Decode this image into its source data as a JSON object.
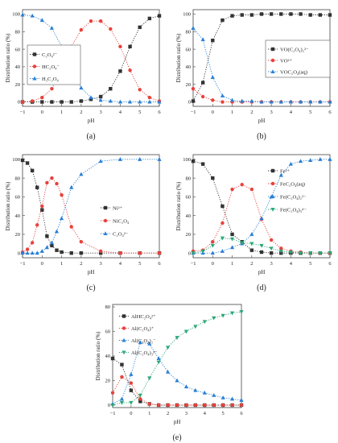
{
  "chart_data": [
    {
      "panel_label": "(a)",
      "type": "line",
      "xlabel": "pH",
      "ylabel": "Distribution ratio (%)",
      "xlim": [
        -1,
        6
      ],
      "ylim": [
        -5,
        105
      ],
      "xticks": [
        -1,
        0,
        1,
        2,
        3,
        4,
        5,
        6
      ],
      "yticks": [
        0,
        20,
        40,
        60,
        80,
        100
      ],
      "legend_position": "top-left",
      "series": [
        {
          "name": "C₂O₄²⁻",
          "color": "#333333",
          "marker": "square",
          "x": [
            -1,
            -0.5,
            0,
            0.5,
            1,
            1.5,
            2,
            2.5,
            3,
            3.5,
            4,
            4.5,
            5,
            5.5,
            6
          ],
          "y": [
            0,
            0,
            0,
            0,
            0,
            0,
            1,
            3,
            6,
            15,
            35,
            63,
            85,
            95,
            98
          ]
        },
        {
          "name": "HC₂O₄⁻",
          "color": "#e8413b",
          "marker": "circle",
          "x": [
            -1,
            -0.5,
            0,
            0.5,
            1,
            1.5,
            2,
            2.5,
            3,
            3.5,
            4,
            4.5,
            5,
            5.5,
            6
          ],
          "y": [
            0,
            1,
            5,
            15,
            35,
            63,
            82,
            92,
            92,
            83,
            63,
            36,
            14,
            5,
            1
          ]
        },
        {
          "name": "H₂C₂O₄",
          "color": "#2a7fd4",
          "marker": "triangle-up",
          "x": [
            -1,
            -0.5,
            0,
            0.5,
            1,
            1.5,
            2,
            2.5,
            3,
            3.5,
            4,
            4.5,
            5,
            5.5,
            6
          ],
          "y": [
            99,
            98,
            93,
            84,
            63,
            36,
            16,
            5,
            2,
            1,
            0,
            0,
            0,
            0,
            0
          ]
        }
      ]
    },
    {
      "panel_label": "(b)",
      "type": "line",
      "xlabel": "pH",
      "ylabel": "Distribution ratio (%)",
      "xlim": [
        -1,
        6
      ],
      "ylim": [
        -5,
        105
      ],
      "xticks": [
        -1,
        0,
        1,
        2,
        3,
        4,
        5,
        6
      ],
      "yticks": [
        0,
        20,
        40,
        60,
        80,
        100
      ],
      "legend_position": "center-right",
      "series": [
        {
          "name": "VO(C₂O₄)₂²⁻",
          "color": "#333333",
          "marker": "square",
          "x": [
            -1,
            -0.5,
            0,
            0.5,
            1,
            1.5,
            2,
            2.5,
            3,
            3.5,
            4,
            4.5,
            5,
            5.5,
            6
          ],
          "y": [
            1,
            22,
            70,
            93,
            98,
            99,
            99,
            100,
            100,
            100,
            100,
            100,
            99,
            99,
            99
          ]
        },
        {
          "name": "VO²⁺",
          "color": "#e8413b",
          "marker": "circle",
          "x": [
            -1,
            -0.5,
            0,
            0.5,
            1,
            1.5,
            2,
            2.5,
            3,
            3.5,
            4,
            4.5,
            5,
            5.5,
            6
          ],
          "y": [
            15,
            6,
            2,
            0,
            0,
            0,
            0,
            0,
            0,
            0,
            0,
            0,
            0,
            0,
            0
          ]
        },
        {
          "name": "VOC₂O₄(aq)",
          "color": "#2a7fd4",
          "marker": "triangle-up",
          "x": [
            -1,
            -0.5,
            0,
            0.5,
            1,
            1.5,
            2,
            2.5,
            3,
            3.5,
            4,
            4.5,
            5,
            5.5,
            6
          ],
          "y": [
            84,
            71,
            28,
            7,
            2,
            1,
            1,
            0,
            0,
            0,
            0,
            0,
            0,
            0,
            0
          ]
        }
      ]
    },
    {
      "panel_label": "(c)",
      "type": "line",
      "xlabel": "pH",
      "ylabel": "Distribution ratio (%)",
      "xlim": [
        -1,
        6
      ],
      "ylim": [
        -5,
        105
      ],
      "xticks": [
        -1,
        0,
        1,
        2,
        3,
        4,
        5,
        6
      ],
      "yticks": [
        0,
        20,
        40,
        60,
        80,
        100
      ],
      "legend_position": "center-right",
      "series": [
        {
          "name": "Ni²⁺",
          "color": "#333333",
          "marker": "square",
          "x": [
            -1,
            -0.75,
            -0.5,
            -0.25,
            0,
            0.25,
            0.5,
            0.75,
            1,
            1.5,
            2,
            3,
            4,
            5,
            6
          ],
          "y": [
            99,
            96,
            88,
            70,
            46,
            18,
            8,
            3,
            1,
            0,
            0,
            0,
            0,
            0,
            0
          ]
        },
        {
          "name": "NiC₂O₄",
          "color": "#e8413b",
          "marker": "circle",
          "x": [
            -1,
            -0.75,
            -0.5,
            -0.25,
            0,
            0.25,
            0.5,
            0.75,
            1,
            1.5,
            2,
            3,
            4,
            5,
            6
          ],
          "y": [
            1,
            4,
            11,
            30,
            50,
            75,
            80,
            74,
            62,
            28,
            12,
            2,
            0,
            0,
            0
          ]
        },
        {
          "name": "C₂O₄²⁻",
          "color": "#2a7fd4",
          "marker": "triangle-up",
          "x": [
            -1,
            -0.75,
            -0.5,
            -0.25,
            0,
            0.25,
            0.5,
            0.75,
            1,
            1.5,
            2,
            3,
            4,
            5,
            6
          ],
          "y": [
            0,
            0,
            0,
            0,
            2,
            6,
            11,
            23,
            37,
            70,
            84,
            98,
            100,
            100,
            100
          ]
        }
      ]
    },
    {
      "panel_label": "(d)",
      "type": "line",
      "xlabel": "pH",
      "ylabel": "Distribution ratio (%)",
      "xlim": [
        -1,
        6
      ],
      "ylim": [
        -5,
        105
      ],
      "xticks": [
        -1,
        0,
        1,
        2,
        3,
        4,
        5,
        6
      ],
      "yticks": [
        0,
        20,
        40,
        60,
        80,
        100
      ],
      "legend_position": "top-right",
      "series": [
        {
          "name": "Fe²⁺",
          "color": "#333333",
          "marker": "square",
          "x": [
            -1,
            -0.5,
            0,
            0.5,
            1,
            1.5,
            2,
            2.5,
            3,
            3.5,
            4,
            4.5,
            5,
            5.5,
            6
          ],
          "y": [
            98,
            95,
            80,
            50,
            20,
            12,
            3,
            1,
            0,
            0,
            0,
            0,
            0,
            0,
            0
          ]
        },
        {
          "name": "FeC₂O₄(aq)",
          "color": "#e8413b",
          "marker": "circle",
          "x": [
            -1,
            -0.5,
            0,
            0.5,
            1,
            1.5,
            2,
            2.5,
            3,
            3.5,
            4,
            4.5,
            5,
            5.5,
            6
          ],
          "y": [
            2,
            3,
            12,
            32,
            68,
            73,
            68,
            36,
            14,
            5,
            2,
            1,
            0,
            0,
            0
          ]
        },
        {
          "name": "Fe(C₂O₄)₂²⁻",
          "color": "#2a7fd4",
          "marker": "triangle-up",
          "x": [
            -1,
            -0.5,
            0,
            0.5,
            1,
            1.5,
            2,
            2.5,
            3,
            3.5,
            4,
            4.5,
            5,
            5.5,
            6
          ],
          "y": [
            0,
            0,
            0,
            2,
            6,
            10,
            20,
            37,
            60,
            83,
            95,
            98,
            99,
            100,
            100
          ]
        },
        {
          "name": "Fe(C₂O₄)₃⁴⁻",
          "color": "#2aa878",
          "marker": "triangle-down",
          "x": [
            -1,
            -0.5,
            0,
            0.5,
            1,
            1.5,
            2,
            2.5,
            3,
            3.5,
            4,
            4.5,
            5,
            5.5,
            6
          ],
          "y": [
            0,
            2,
            8,
            16,
            15,
            11,
            10,
            8,
            5,
            2,
            1,
            0,
            0,
            0,
            0
          ]
        }
      ]
    },
    {
      "panel_label": "(e)",
      "type": "line",
      "xlabel": "pH",
      "ylabel": "Distribution ratio (%)",
      "xlim": [
        -1,
        6
      ],
      "ylim": [
        -2,
        82
      ],
      "xticks": [
        -1,
        0,
        1,
        2,
        3,
        4,
        5,
        6
      ],
      "yticks": [
        0,
        20,
        40,
        60,
        80
      ],
      "legend_position": "top-left",
      "series": [
        {
          "name": "AlHC₂O₄²⁺",
          "color": "#333333",
          "marker": "square",
          "x": [
            -1,
            -0.5,
            0,
            0.5,
            1,
            1.5,
            2,
            2.5,
            3,
            3.5,
            4,
            4.5,
            5,
            5.5,
            6
          ],
          "y": [
            38,
            33,
            12,
            3,
            1,
            0,
            0,
            0,
            0,
            0,
            0,
            0,
            0,
            0,
            0
          ]
        },
        {
          "name": "Al(C₂O₄)⁺",
          "color": "#e8413b",
          "marker": "circle",
          "x": [
            -1,
            -0.5,
            0,
            0.5,
            1,
            1.5,
            2,
            2.5,
            3,
            3.5,
            4,
            4.5,
            5,
            5.5,
            6
          ],
          "y": [
            10,
            23,
            18,
            5,
            1,
            0,
            0,
            0,
            0,
            0,
            0,
            0,
            0,
            0,
            0
          ]
        },
        {
          "name": "Al(C₂O₄)₂⁻",
          "color": "#2a7fd4",
          "marker": "triangle-up",
          "x": [
            -1,
            -0.5,
            0,
            0.5,
            1,
            1.5,
            2,
            2.5,
            3,
            3.5,
            4,
            4.5,
            5,
            5.5,
            6
          ],
          "y": [
            1,
            5,
            25,
            51,
            50,
            38,
            27,
            20,
            15,
            12,
            10,
            8,
            6,
            5,
            4
          ]
        },
        {
          "name": "Al(C₂O₄)₃³⁻",
          "color": "#2aa878",
          "marker": "triangle-down",
          "x": [
            -1,
            -0.5,
            0,
            0.5,
            1,
            1.5,
            2,
            2.5,
            3,
            3.5,
            4,
            4.5,
            5,
            5.5,
            6
          ],
          "y": [
            0,
            2,
            2,
            8,
            22,
            35,
            47,
            55,
            60,
            64,
            68,
            71,
            73,
            75,
            76
          ]
        }
      ]
    }
  ]
}
